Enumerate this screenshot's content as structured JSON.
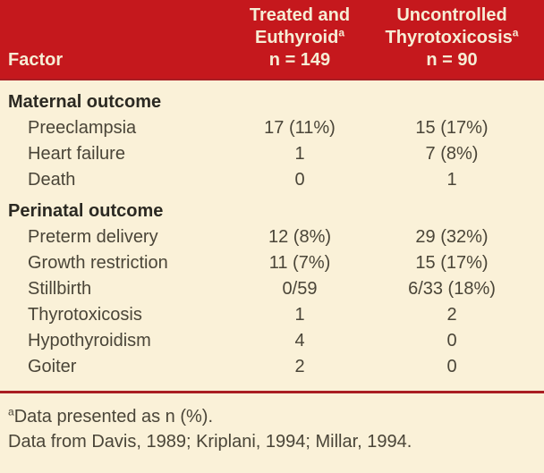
{
  "table": {
    "columns": [
      {
        "label": "Factor"
      },
      {
        "line1": "Treated and",
        "line2": "Euthyroid",
        "sup": "a",
        "n": "n = 149"
      },
      {
        "line1": "Uncontrolled",
        "line2": "Thyrotoxicosis",
        "sup": "a",
        "n": "n = 90"
      }
    ],
    "sections": [
      {
        "header": "Maternal outcome",
        "rows": [
          {
            "factor": "Preeclampsia",
            "treated": "17 (11%)",
            "uncontrolled": "15 (17%)"
          },
          {
            "factor": "Heart failure",
            "treated": "1",
            "uncontrolled": "7 (8%)"
          },
          {
            "factor": "Death",
            "treated": "0",
            "uncontrolled": "1"
          }
        ]
      },
      {
        "header": "Perinatal outcome",
        "rows": [
          {
            "factor": "Preterm delivery",
            "treated": "12 (8%)",
            "uncontrolled": "29 (32%)"
          },
          {
            "factor": "Growth restriction",
            "treated": "11 (7%)",
            "uncontrolled": "15 (17%)"
          },
          {
            "factor": "Stillbirth",
            "treated": "0/59",
            "uncontrolled": "6/33 (18%)"
          },
          {
            "factor": "Thyrotoxicosis",
            "treated": "1",
            "uncontrolled": "2"
          },
          {
            "factor": "Hypothyroidism",
            "treated": "4",
            "uncontrolled": "0"
          },
          {
            "factor": "Goiter",
            "treated": "2",
            "uncontrolled": "0"
          }
        ]
      }
    ],
    "footnotes": {
      "marker": "a",
      "note": "Data presented as n (%).",
      "source": "Data from Davis, 1989; Kriplani, 1994; Millar, 1994."
    },
    "colors": {
      "header_red": "#c5181d",
      "rule_red": "#a91e23",
      "body_cream": "#faf1d8",
      "header_text": "#f6edd5",
      "body_text": "#4a4538"
    }
  }
}
